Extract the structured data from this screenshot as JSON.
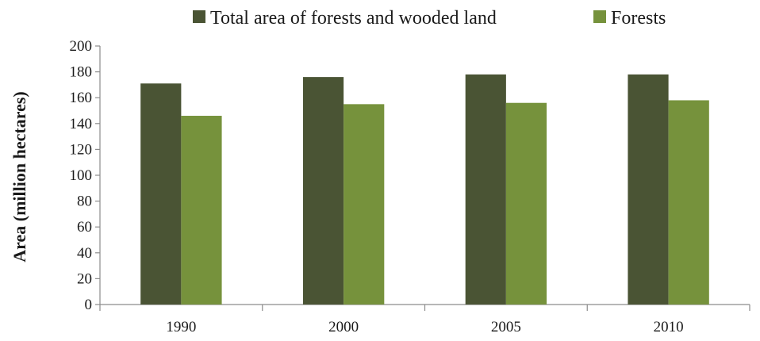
{
  "chart_data": {
    "type": "bar",
    "categories": [
      "1990",
      "2000",
      "2005",
      "2010"
    ],
    "series": [
      {
        "name": "Total area of forests and wooded land",
        "values": [
          171,
          176,
          178,
          178
        ],
        "color": "#4a5434"
      },
      {
        "name": "Forests",
        "values": [
          146,
          155,
          156,
          158
        ],
        "color": "#76923c"
      }
    ],
    "title": "",
    "xlabel": "",
    "ylabel": "Area (million hectares)",
    "ylim": [
      0,
      200
    ],
    "yticks": [
      0,
      20,
      40,
      60,
      80,
      100,
      120,
      140,
      160,
      180,
      200
    ],
    "grid": false,
    "legend_position": "top"
  }
}
